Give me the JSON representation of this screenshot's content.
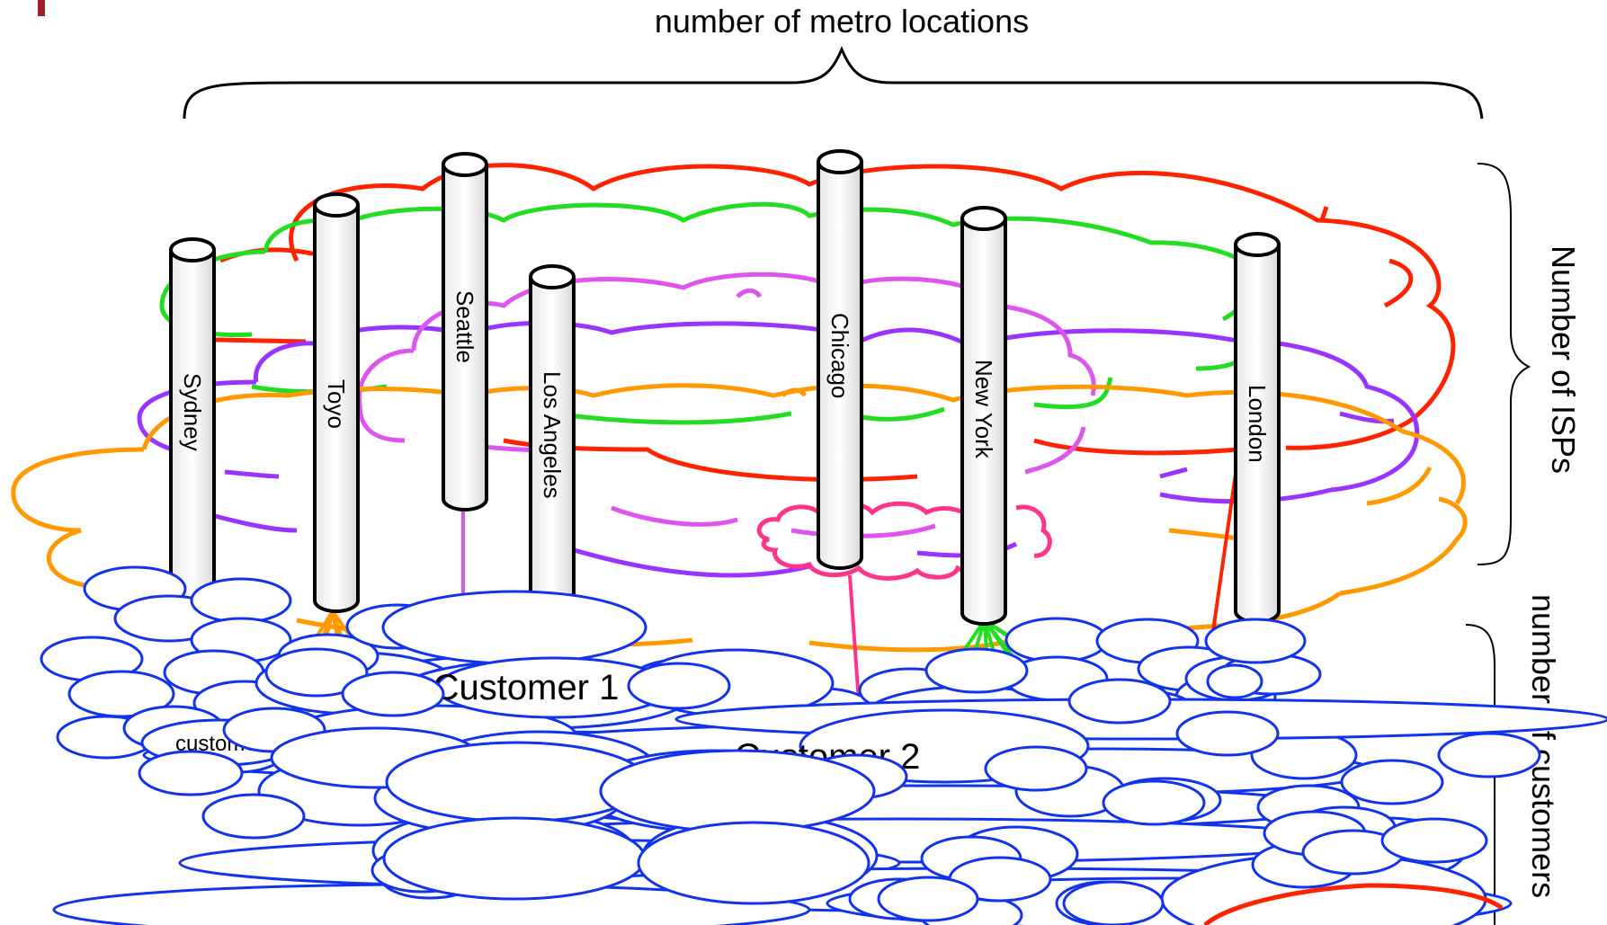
{
  "labels": {
    "top_axis": "number of metro locations",
    "right_axis_isps": "Number of ISPs",
    "right_axis_customers": "number of customers",
    "customer_1": "Customer 1",
    "customer_2": "Customer 2",
    "customer_small": "customer"
  },
  "metros": [
    "Sydney",
    "Toyo",
    "Seattle",
    "Los Angeles",
    "Chicago",
    "New York",
    "London"
  ],
  "colors": {
    "isp_red": "#ff2200",
    "isp_green": "#22dd22",
    "isp_violet": "#9933ff",
    "isp_pink": "#dd55ee",
    "isp_orange": "#ff9900",
    "isp_magenta": "#ff3388",
    "customer_blue": "#1133ee",
    "accent_dark_red": "#a0202a"
  }
}
